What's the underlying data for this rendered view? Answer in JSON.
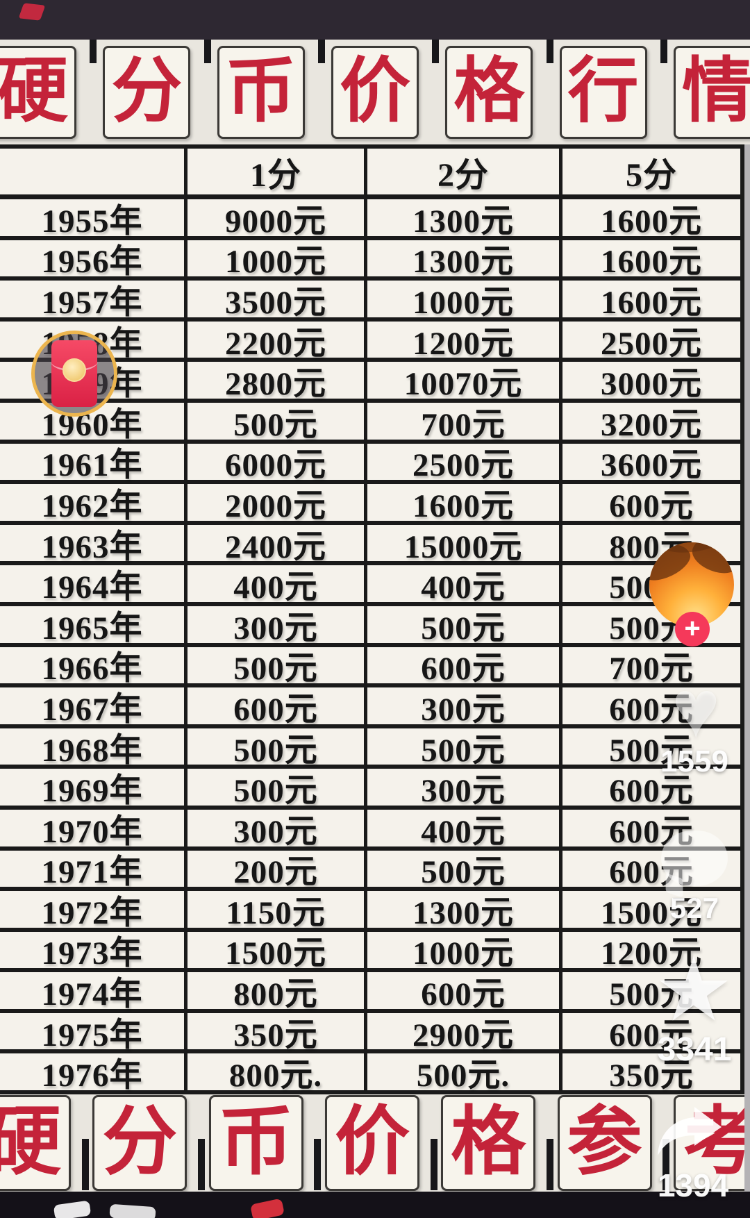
{
  "header": {
    "title_chars": [
      "硬",
      "分",
      "币",
      "价",
      "格",
      "行",
      "情"
    ]
  },
  "footer": {
    "title_chars": [
      "硬",
      "分",
      "币",
      "价",
      "格",
      "参",
      "考"
    ]
  },
  "chart_data": {
    "type": "table",
    "title": "硬分币价格行情",
    "columns": [
      "",
      "1分",
      "2分",
      "5分"
    ],
    "rows": [
      {
        "year": "1955年",
        "f1": "9000元",
        "f2": "1300元",
        "f5": "1600元"
      },
      {
        "year": "1956年",
        "f1": "1000元",
        "f2": "1300元",
        "f5": "1600元"
      },
      {
        "year": "1957年",
        "f1": "3500元",
        "f2": "1000元",
        "f5": "1600元"
      },
      {
        "year": "1958年",
        "f1": "2200元",
        "f2": "1200元",
        "f5": "2500元"
      },
      {
        "year": "1959年",
        "f1": "2800元",
        "f2": "10070元",
        "f5": "3000元"
      },
      {
        "year": "1960年",
        "f1": "500元",
        "f2": "700元",
        "f5": "3200元"
      },
      {
        "year": "1961年",
        "f1": "6000元",
        "f2": "2500元",
        "f5": "3600元"
      },
      {
        "year": "1962年",
        "f1": "2000元",
        "f2": "1600元",
        "f5": "600元"
      },
      {
        "year": "1963年",
        "f1": "2400元",
        "f2": "15000元",
        "f5": "800元"
      },
      {
        "year": "1964年",
        "f1": "400元",
        "f2": "400元",
        "f5": "500元"
      },
      {
        "year": "1965年",
        "f1": "300元",
        "f2": "500元",
        "f5": "500元"
      },
      {
        "year": "1966年",
        "f1": "500元",
        "f2": "600元",
        "f5": "700元"
      },
      {
        "year": "1967年",
        "f1": "600元",
        "f2": "300元",
        "f5": "600元"
      },
      {
        "year": "1968年",
        "f1": "500元",
        "f2": "500元",
        "f5": "500元"
      },
      {
        "year": "1969年",
        "f1": "500元",
        "f2": "300元",
        "f5": "600元"
      },
      {
        "year": "1970年",
        "f1": "300元",
        "f2": "400元",
        "f5": "600元"
      },
      {
        "year": "1971年",
        "f1": "200元",
        "f2": "500元",
        "f5": "600元"
      },
      {
        "year": "1972年",
        "f1": "1150元",
        "f2": "1300元",
        "f5": "1500元"
      },
      {
        "year": "1973年",
        "f1": "1500元",
        "f2": "1000元",
        "f5": "1200元"
      },
      {
        "year": "1974年",
        "f1": "800元",
        "f2": "600元",
        "f5": "500元"
      },
      {
        "year": "1975年",
        "f1": "350元",
        "f2": "2900元",
        "f5": "600元"
      },
      {
        "year": "1976年",
        "f1": "800元.",
        "f2": "500元.",
        "f5": "350元"
      }
    ]
  },
  "rail": {
    "follow_label": "+",
    "like_icon_glyph": "♥",
    "favorite_icon_glyph": "★",
    "like_count": "1559",
    "comment_count": "527",
    "favorite_count": "3341",
    "share_count": "1394"
  },
  "colors": {
    "title_red": "#c42339",
    "table_line": "#1a1a1a",
    "tile_bg": "#f7f4ec",
    "band_bg": "#e9e6df",
    "top_bar": "#2e2832",
    "bottom_bar": "#141118",
    "envelope_red": "#e8304f",
    "ring_gold": "#ecb54e",
    "follow_red": "#f5395a"
  }
}
